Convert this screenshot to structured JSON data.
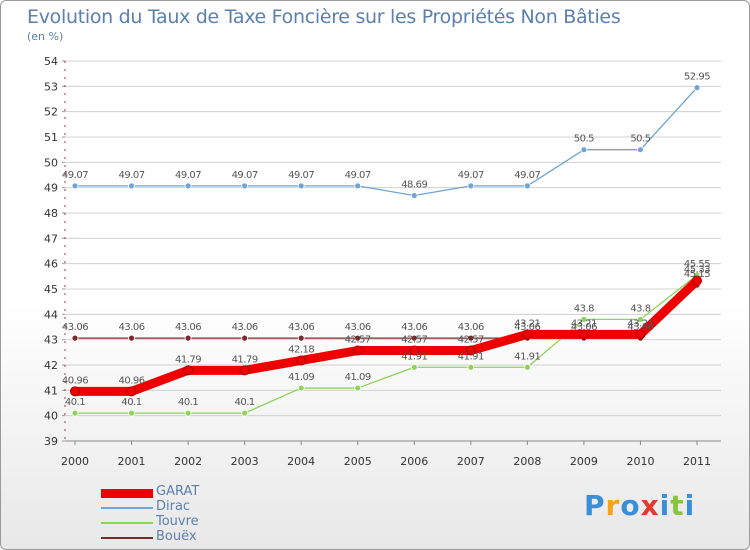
{
  "header": {
    "title": "Evolution du Taux de Taxe Foncière sur les Propriétés Non Bâties",
    "unit": "(en %)"
  },
  "logo": {
    "text": "Proxiti",
    "colors": [
      "#3a8fd9",
      "#f5a31a",
      "#3a8fd9",
      "#e23b2e",
      "#3a8fd9",
      "#8ac43f",
      "#3a8fd9"
    ]
  },
  "chart_data": {
    "type": "line",
    "title": "Evolution du Taux de Taxe Foncière sur les Propriétés Non Bâties",
    "ylabel": "(en %)",
    "xlabel": "",
    "ylim": [
      39,
      54
    ],
    "yticks": [
      39,
      40,
      41,
      42,
      43,
      44,
      45,
      46,
      47,
      48,
      49,
      50,
      51,
      52,
      53,
      54
    ],
    "categories": [
      "2000",
      "2001",
      "2002",
      "2003",
      "2004",
      "2005",
      "2006",
      "2007",
      "2008",
      "2009",
      "2010",
      "2011"
    ],
    "legend_position": "bottom-left",
    "series": [
      {
        "name": "Bouëx",
        "color": "#7a2a2a",
        "values": [
          43.06,
          43.06,
          43.06,
          43.06,
          43.06,
          43.06,
          43.06,
          43.06,
          43.06,
          43.06,
          43.06,
          45.15
        ],
        "labels": [
          "43.06",
          "43.06",
          "43.06",
          "43.06",
          "43.06",
          "43.06",
          "43.06",
          "43.06",
          "43.06",
          "43.06",
          "43.06",
          "45.15"
        ]
      },
      {
        "name": "Touvre",
        "color": "#8fd45a",
        "values": [
          40.1,
          40.1,
          40.1,
          40.1,
          41.09,
          41.09,
          41.91,
          41.91,
          41.91,
          43.8,
          43.8,
          45.55
        ],
        "labels": [
          "40.1",
          "40.1",
          "40.1",
          "40.1",
          "41.09",
          "41.09",
          "41.91",
          "41.91",
          "41.91",
          "43.8",
          "43.8",
          "45.55"
        ]
      },
      {
        "name": "Dirac",
        "color": "#6ea4d6",
        "values": [
          49.07,
          49.07,
          49.07,
          49.07,
          49.07,
          49.07,
          48.69,
          49.07,
          49.07,
          50.5,
          50.5,
          52.95
        ],
        "labels": [
          "49.07",
          "49.07",
          "49.07",
          "49.07",
          "49.07",
          "49.07",
          "48.69",
          "49.07",
          "49.07",
          "50.5",
          "50.5",
          "52.95"
        ]
      },
      {
        "name": "GARAT",
        "color": "#ee0000",
        "values": [
          40.96,
          40.96,
          41.79,
          41.79,
          42.18,
          42.57,
          42.57,
          42.57,
          43.21,
          43.21,
          43.21,
          45.33
        ],
        "labels": [
          "40.96",
          "40.96",
          "41.79",
          "41.79",
          "42.18",
          "42.57",
          "42.57",
          "42.57",
          "43.21",
          "43.21",
          "43.21",
          "45.33"
        ]
      }
    ],
    "legend_order": [
      "GARAT",
      "Dirac",
      "Touvre",
      "Bouëx"
    ]
  }
}
